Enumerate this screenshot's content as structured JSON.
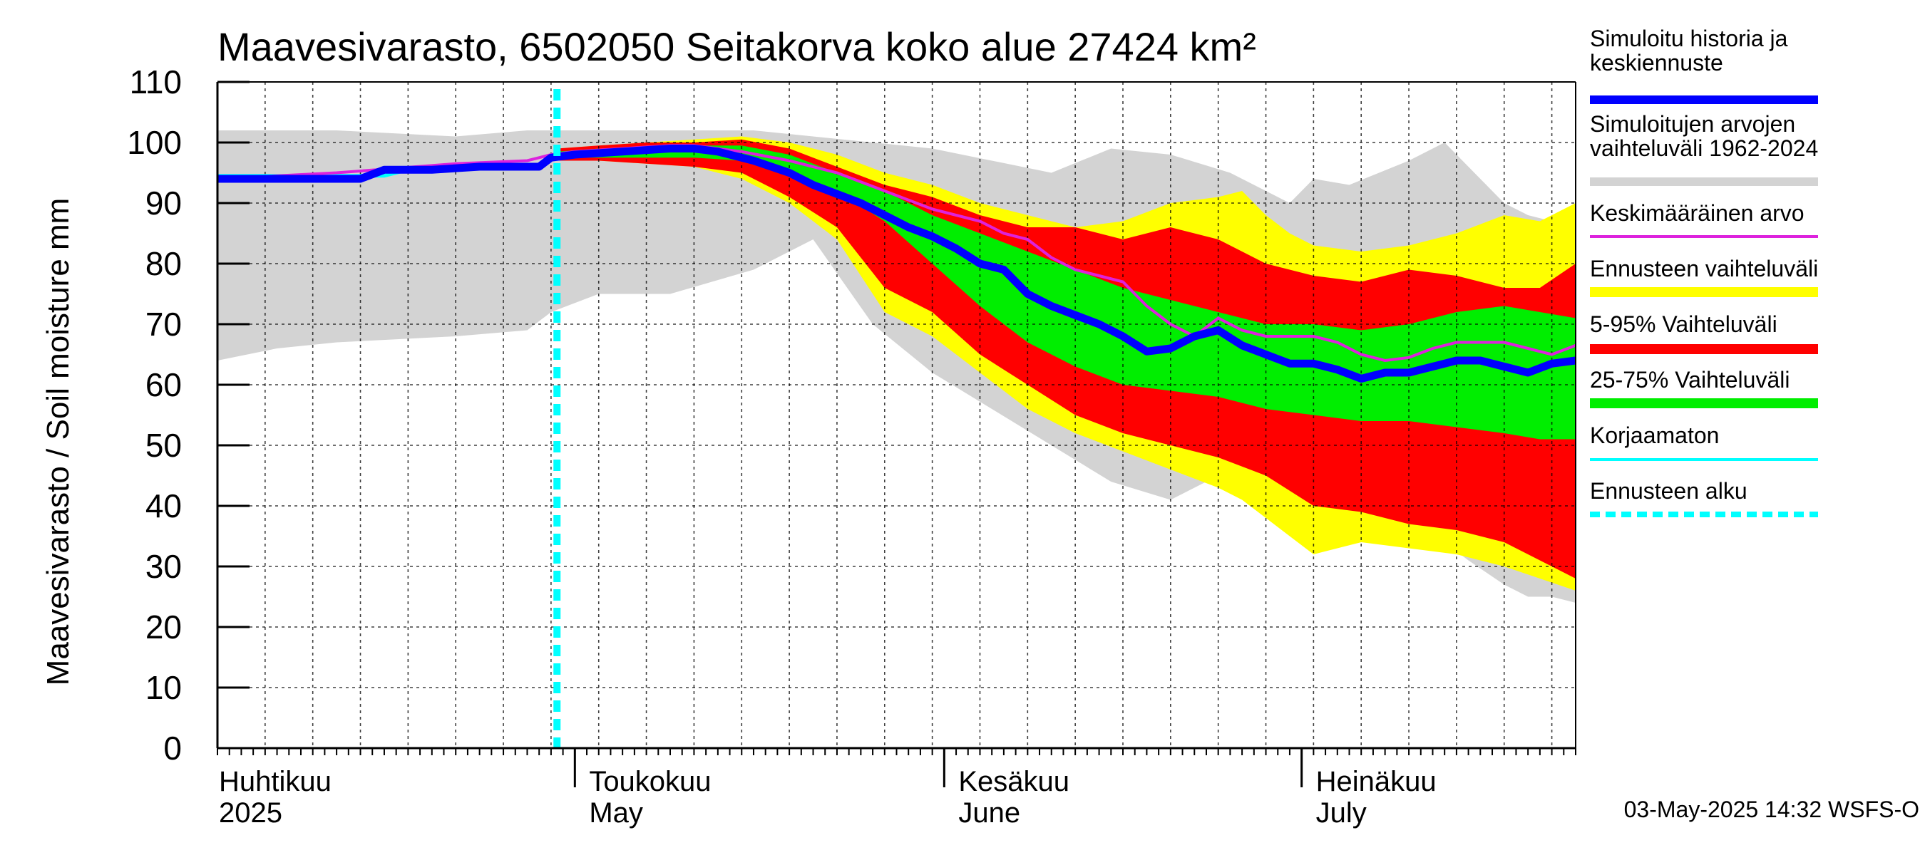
{
  "chart_data": {
    "type": "area",
    "title": "Maavesivarasto, 6502050 Seitakorva koko alue 27424 km²",
    "ylabel": "Maavesivarasto / Soil moisture   mm",
    "ylim": [
      0,
      110
    ],
    "yticks": [
      0,
      10,
      20,
      30,
      40,
      50,
      60,
      70,
      80,
      90,
      100,
      110
    ],
    "x_range_days": [
      0,
      114
    ],
    "x_start_date": "2025-04-01",
    "forecast_start_day": 28.5,
    "month_labels": [
      {
        "day": 0,
        "fi": "Huhtikuu",
        "en": "2025"
      },
      {
        "day": 30,
        "fi": "Toukokuu",
        "en": "May"
      },
      {
        "day": 61,
        "fi": "Kesäkuu",
        "en": "June"
      },
      {
        "day": 91,
        "fi": "Heinäkuu",
        "en": "July"
      }
    ],
    "colors": {
      "history_range": "#d3d3d3",
      "forecast_range": "#ffff00",
      "p5_95": "#ff0000",
      "p25_75": "#00ee00",
      "history_median": "#0000ff",
      "mean": "#dd22dd",
      "uncorrected": "#00ffff",
      "forecast_start": "#00ffff"
    },
    "legend": [
      {
        "label": "Simuloitu historia ja keskiennuste",
        "lines": [
          "Simuloitu historia ja",
          "keskiennuste"
        ],
        "kind": "median"
      },
      {
        "label": "Simuloitujen arvojen vaihteluväli 1962-2024",
        "lines": [
          "Simuloitujen arvojen",
          "vaihteluväli 1962-2024"
        ],
        "kind": "history_range"
      },
      {
        "label": "Keskimääräinen arvo",
        "lines": [
          "Keskimääräinen arvo"
        ],
        "kind": "mean"
      },
      {
        "label": "Ennusteen vaihteluväli",
        "lines": [
          "Ennusteen vaihteluväli"
        ],
        "kind": "forecast_range"
      },
      {
        "label": "5-95% Vaihteluväli",
        "lines": [
          "5-95% Vaihteluväli"
        ],
        "kind": "p5_95"
      },
      {
        "label": "25-75% Vaihteluväli",
        "lines": [
          "25-75% Vaihteluväli"
        ],
        "kind": "p25_75"
      },
      {
        "label": "Korjaamaton",
        "lines": [
          "Korjaamaton"
        ],
        "kind": "uncorrected"
      },
      {
        "label": "Ennusteen alku",
        "lines": [
          "Ennusteen alku"
        ],
        "kind": "forecast_start"
      }
    ],
    "series": {
      "history_range": {
        "x": [
          0,
          5,
          10,
          20,
          26,
          28,
          32,
          38,
          45,
          50,
          55,
          60,
          65,
          70,
          75,
          80,
          85,
          90,
          92,
          95,
          100,
          103,
          105,
          108,
          110,
          112,
          114
        ],
        "upper": [
          102,
          102,
          102,
          101,
          102,
          102,
          102,
          102,
          102,
          101,
          100,
          99,
          97,
          95,
          99,
          98,
          95,
          90,
          94,
          93,
          97,
          100,
          96,
          90,
          88,
          87,
          90
        ],
        "lower": [
          64,
          66,
          67,
          68,
          69,
          72,
          75,
          75,
          79,
          84,
          70,
          62,
          56,
          50,
          44,
          41,
          46,
          42,
          40,
          36,
          35,
          34,
          31,
          27,
          25,
          25,
          24
        ]
      },
      "forecast_range": {
        "x": [
          28.5,
          32,
          36,
          40,
          44,
          48,
          52,
          56,
          60,
          64,
          68,
          72,
          76,
          80,
          84,
          86,
          88,
          90,
          92,
          96,
          100,
          104,
          108,
          111,
          114
        ],
        "upper": [
          99,
          99.5,
          100,
          100.5,
          101,
          100,
          98,
          95,
          93,
          90,
          88,
          86,
          87,
          90,
          91,
          92,
          88,
          85,
          83,
          82,
          83,
          85,
          88,
          87,
          90
        ],
        "lower": [
          97,
          97,
          96.5,
          96,
          94,
          90,
          84,
          72,
          68,
          62,
          56,
          52,
          49,
          46,
          43,
          41,
          38,
          35,
          32,
          34,
          33,
          32,
          30,
          28,
          26
        ]
      },
      "p5_95": {
        "x": [
          28.5,
          32,
          36,
          40,
          44,
          48,
          52,
          56,
          60,
          64,
          68,
          72,
          76,
          80,
          84,
          88,
          92,
          96,
          100,
          104,
          108,
          111,
          114
        ],
        "upper": [
          99,
          99.5,
          100,
          100,
          100.5,
          99,
          96,
          93,
          91,
          88,
          86,
          86,
          84,
          86,
          84,
          80,
          78,
          77,
          79,
          78,
          76,
          76,
          80
        ],
        "lower": [
          97,
          97,
          96.5,
          96,
          95,
          91,
          86,
          76,
          72,
          65,
          60,
          55,
          52,
          50,
          48,
          45,
          40,
          39,
          37,
          36,
          34,
          31,
          28
        ]
      },
      "p25_75": {
        "x": [
          28.5,
          32,
          36,
          40,
          44,
          48,
          52,
          56,
          60,
          64,
          68,
          72,
          76,
          80,
          84,
          88,
          92,
          96,
          100,
          104,
          108,
          111,
          114
        ],
        "upper": [
          98.5,
          99,
          99,
          99.5,
          99.5,
          98,
          95,
          92,
          88,
          85,
          82,
          79,
          76,
          74,
          72,
          70,
          70,
          69,
          70,
          72,
          73,
          72,
          71
        ],
        "lower": [
          97.5,
          97.5,
          97.5,
          97.5,
          97,
          95,
          92,
          87,
          80,
          73,
          67,
          63,
          60,
          59,
          58,
          56,
          55,
          54,
          54,
          53,
          52,
          51,
          51
        ]
      },
      "history_median": {
        "x": [
          0,
          12,
          14,
          18,
          22,
          26,
          27,
          28,
          30,
          34,
          38,
          40,
          42,
          45,
          48,
          50,
          52,
          54,
          56,
          58,
          60,
          62,
          64,
          66,
          68,
          70,
          72,
          74,
          76,
          78,
          80,
          82,
          84,
          86,
          88,
          90,
          92,
          94,
          96,
          98,
          100,
          102,
          104,
          106,
          108,
          110,
          112,
          114
        ],
        "y": [
          94,
          94,
          95.5,
          95.5,
          96,
          96,
          96,
          97.5,
          98,
          98.5,
          99,
          99,
          98.5,
          97,
          95,
          93,
          91.5,
          90,
          88,
          86,
          84.5,
          82.5,
          80,
          79,
          75,
          73,
          71.5,
          70,
          68,
          65.5,
          66,
          68,
          69,
          66.5,
          65,
          63.5,
          63.5,
          62.5,
          61,
          62,
          62,
          63,
          64,
          64,
          63,
          62,
          63.5,
          64
        ]
      },
      "mean": {
        "x": [
          0,
          10,
          20,
          26,
          28,
          30,
          34,
          38,
          40,
          44,
          48,
          52,
          56,
          60,
          64,
          66,
          68,
          70,
          72,
          74,
          76,
          78,
          80,
          82,
          84,
          86,
          88,
          90,
          92,
          94,
          96,
          98,
          100,
          102,
          104,
          106,
          108,
          110,
          112,
          114
        ],
        "y": [
          94,
          95,
          96.5,
          97,
          98,
          98.5,
          99,
          99.5,
          99.5,
          98.5,
          97,
          95,
          92,
          89,
          87,
          85,
          84,
          81,
          79,
          78,
          77,
          73,
          70,
          68,
          71,
          69,
          68,
          68,
          68,
          67,
          65,
          64,
          64.5,
          66,
          67,
          67,
          67,
          66,
          65,
          66.5
        ]
      },
      "uncorrected": {
        "x": [
          0,
          14,
          16,
          20,
          24,
          26,
          27,
          28,
          30
        ],
        "y": [
          94.5,
          94.5,
          95.5,
          96,
          96,
          96,
          96,
          97.5,
          98
        ]
      }
    }
  },
  "footer": {
    "timestamp": "03-May-2025 14:32 WSFS-O"
  }
}
